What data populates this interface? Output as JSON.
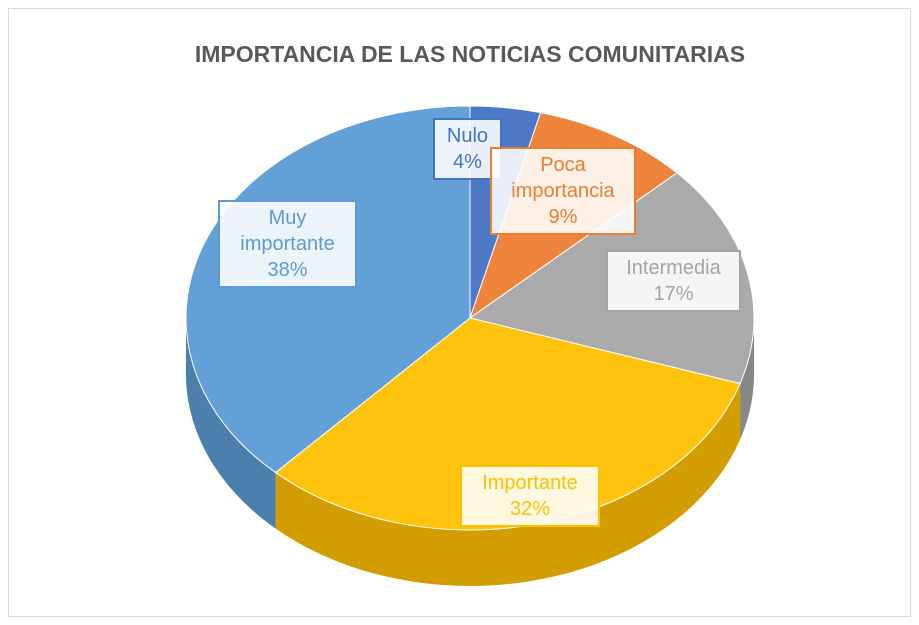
{
  "chart_data": {
    "type": "pie",
    "title": "IMPORTANCIA DE LAS NOTICIAS COMUNITARIAS",
    "categories": [
      "Nulo",
      "Poca importancia",
      "Intermedia",
      "Importante",
      "Muy importante"
    ],
    "values": [
      4,
      9,
      17,
      32,
      38
    ],
    "value_labels": [
      "4%",
      "9%",
      "17%",
      "32%",
      "38%"
    ],
    "colors": [
      "#4472c4",
      "#ed7d31",
      "#a5a5a5",
      "#ffc000",
      "#5b9bd5"
    ]
  }
}
